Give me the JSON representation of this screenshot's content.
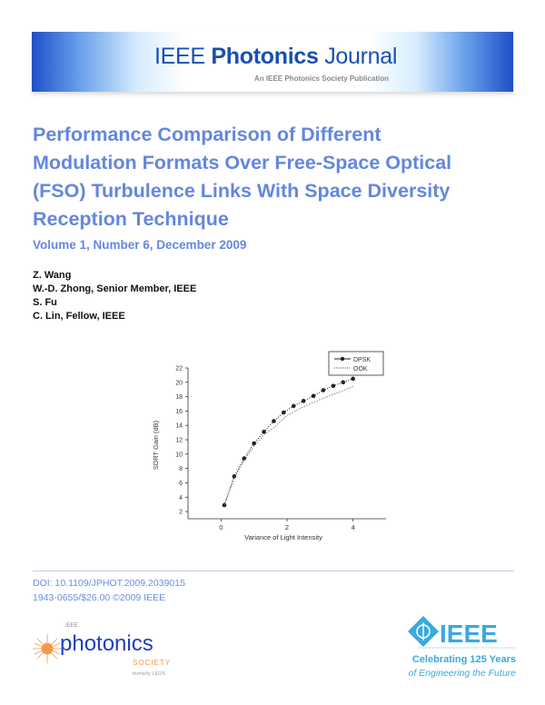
{
  "banner": {
    "title_light1": "IEEE ",
    "title_bold": "Photonics",
    "title_light2": " Journal",
    "subtitle": "An IEEE Photonics Society Publication"
  },
  "title": "Performance Comparison of Different Modulation Formats Over Free-Space Optical (FSO) Turbulence Links With Space Diversity Reception Technique",
  "volume": "Volume 1, Number 6, December 2009",
  "authors": [
    "Z. Wang",
    "W.-D. Zhong, Senior Member, IEEE",
    "S. Fu",
    "C. Lin, Fellow, IEEE"
  ],
  "chart_data": {
    "type": "line",
    "xlabel": "Variance of Light Intensity",
    "ylabel": "SDRT Gain (dB)",
    "xlim": [
      -1,
      5
    ],
    "ylim": [
      1,
      22
    ],
    "xticks": [
      0,
      2,
      4
    ],
    "yticks": [
      2,
      4,
      6,
      8,
      10,
      12,
      14,
      16,
      18,
      20,
      22
    ],
    "grid": false,
    "legend": "top-right",
    "series": [
      {
        "name": "DPSK",
        "style": "dotted-with-circle-markers",
        "x": [
          0.1,
          0.4,
          0.7,
          1.0,
          1.3,
          1.6,
          1.9,
          2.2,
          2.5,
          2.8,
          3.1,
          3.4,
          3.7,
          4.0
        ],
        "y": [
          2.9,
          6.9,
          9.4,
          11.5,
          13.1,
          14.6,
          15.8,
          16.7,
          17.4,
          18.1,
          18.9,
          19.5,
          20.0,
          20.5
        ]
      },
      {
        "name": "OOK",
        "style": "dotted",
        "x": [
          0.1,
          0.4,
          0.7,
          1.0,
          1.3,
          1.6,
          2.0,
          2.5,
          3.0,
          3.5,
          4.0
        ],
        "y": [
          2.9,
          6.7,
          9.1,
          11.1,
          12.7,
          13.7,
          15.4,
          16.6,
          17.6,
          18.5,
          19.4
        ]
      }
    ]
  },
  "footer": {
    "doi": "DOI: 10.1109/JPHOT.2009.2039015",
    "issn": "1943-0655/$26.00 ©2009 IEEE"
  },
  "logos": {
    "photonics_society": {
      "small": "IEEE",
      "main": "photonics",
      "society": "SOCIETY",
      "formerly": "formerly LEOS"
    },
    "ieee": {
      "mark": "IEEE",
      "line1": "Celebrating 125 Years",
      "line2": "of Engineering the Future"
    }
  },
  "colors": {
    "title": "#6487de",
    "banner": "#1a4fb0",
    "ieee": "#3aa9dc",
    "orange": "#f29a4a"
  }
}
